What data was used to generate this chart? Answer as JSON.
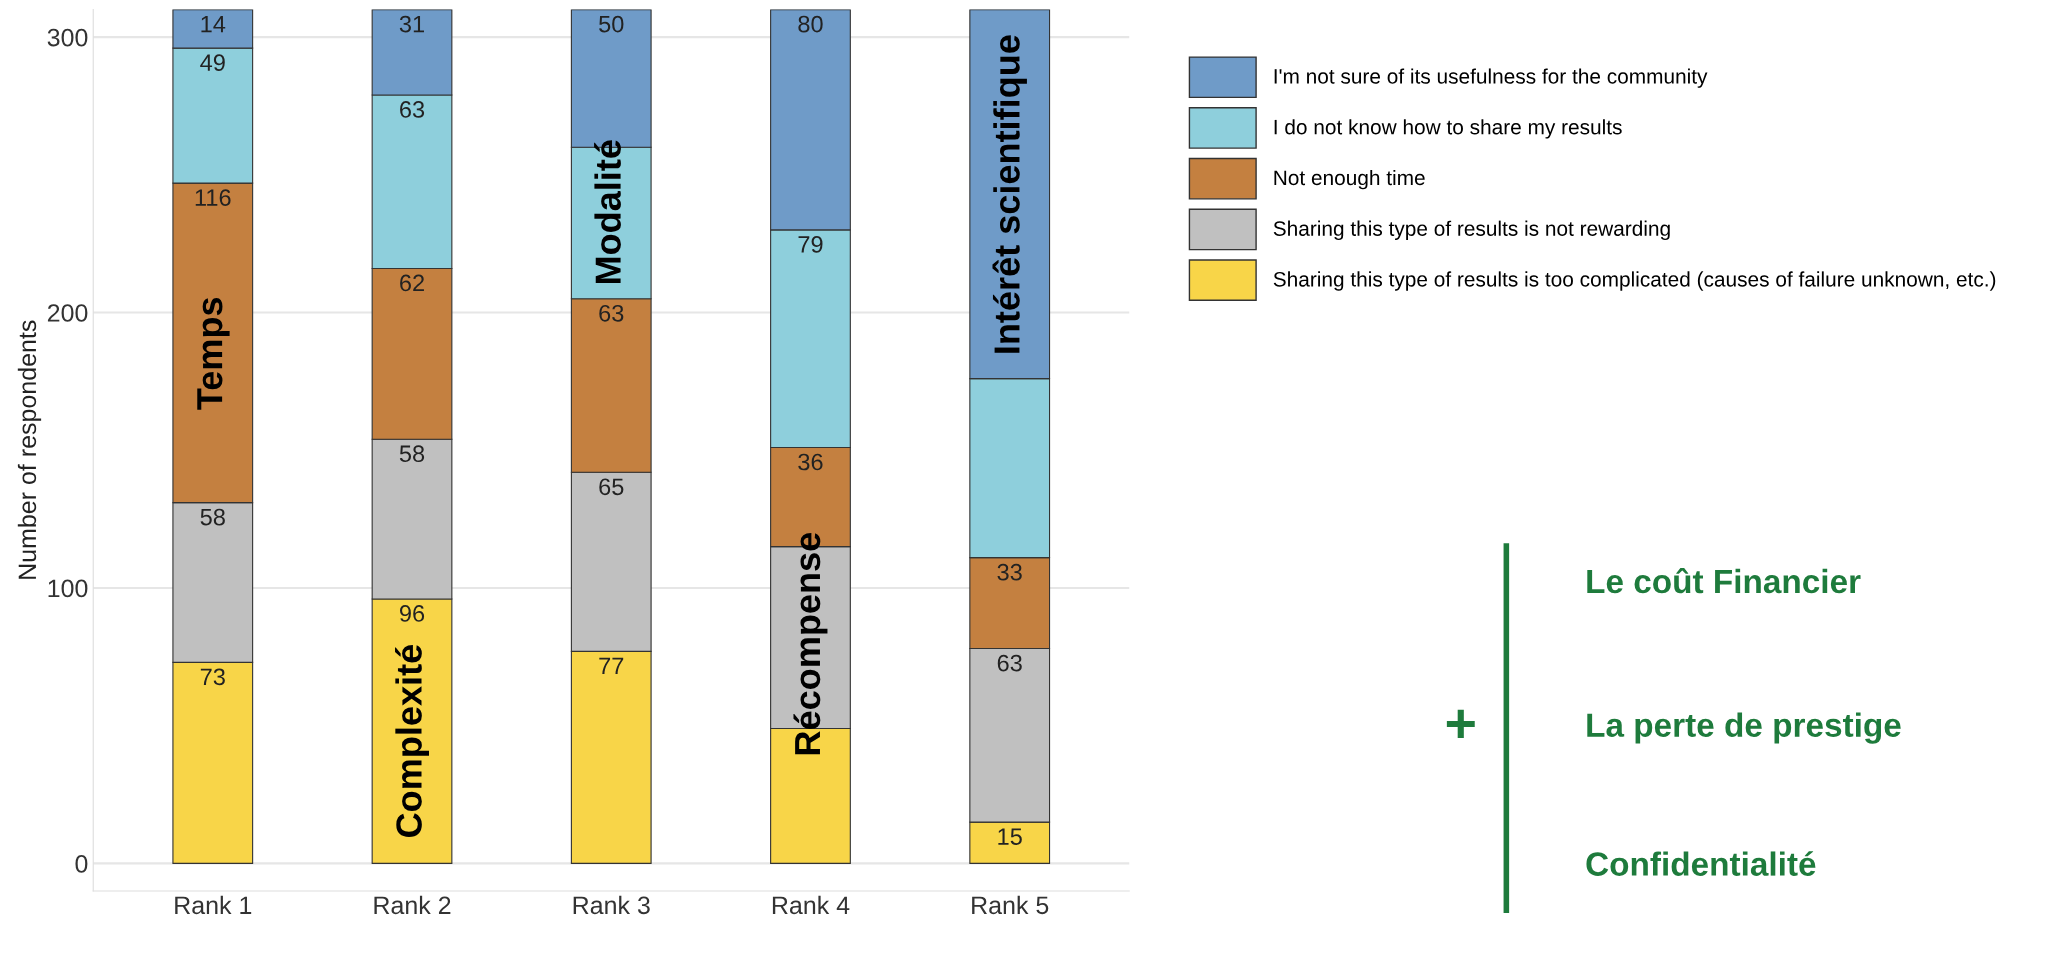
{
  "chart_data": {
    "type": "bar",
    "stacked": true,
    "ylabel": "Number of respondents",
    "categories": [
      "Rank 1",
      "Rank 2",
      "Rank 3",
      "Rank 4",
      "Rank 5"
    ],
    "series": [
      {
        "name": "Sharing this type of results is too complicated (causes of failure unknown, etc.)",
        "color": "#f8d548",
        "values": [
          73,
          96,
          77,
          49,
          15
        ],
        "value_labels": [
          "73",
          "96",
          "77",
          null,
          "15"
        ]
      },
      {
        "name": "Sharing this type of results is not rewarding",
        "color": "#c0c0c0",
        "values": [
          58,
          58,
          65,
          66,
          63
        ],
        "value_labels": [
          "58",
          "58",
          "65",
          null,
          "63"
        ]
      },
      {
        "name": "Not enough time",
        "color": "#c48040",
        "values": [
          116,
          62,
          63,
          36,
          33
        ],
        "value_labels": [
          "116",
          "62",
          "63",
          "36",
          "33"
        ]
      },
      {
        "name": "I do not know how to share my results",
        "color": "#8ecfdc",
        "values": [
          49,
          63,
          55,
          79,
          65
        ],
        "value_labels": [
          "49",
          "63",
          null,
          "79",
          null
        ]
      },
      {
        "name": "I'm not sure of its usefulness for the community",
        "color": "#6f9bc8",
        "values": [
          14,
          31,
          50,
          80,
          134
        ],
        "value_labels": [
          "14",
          "31",
          "50",
          "80",
          null
        ]
      }
    ],
    "ylim": [
      -10,
      310
    ],
    "yticks": [
      0,
      100,
      200,
      300
    ],
    "grid": "y",
    "legend": "top right",
    "annotations": [
      "Temps",
      "Complexité",
      "Modalité",
      "Récompense",
      "Intérêt scientifique",
      "+",
      "Le coût Financier",
      "La perte de prestige",
      "Confidentialité"
    ]
  }
}
